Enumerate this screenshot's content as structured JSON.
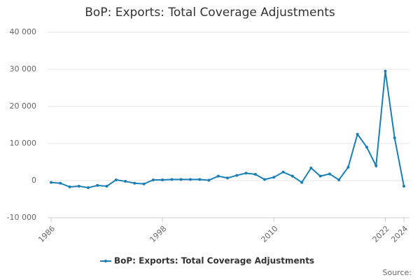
{
  "chart_data": {
    "type": "line",
    "title": "BoP: Exports: Total Coverage Adjustments",
    "source": "Source:",
    "x": [
      1986,
      1987,
      1988,
      1989,
      1990,
      1991,
      1992,
      1993,
      1994,
      1995,
      1996,
      1997,
      1998,
      1999,
      2000,
      2001,
      2002,
      2003,
      2004,
      2005,
      2006,
      2007,
      2008,
      2009,
      2010,
      2011,
      2012,
      2013,
      2014,
      2015,
      2016,
      2017,
      2018,
      2019,
      2020,
      2021,
      2022,
      2023,
      2024
    ],
    "series": [
      {
        "name": "BoP: Exports: Total Coverage Adjustments",
        "color": "#1a7fb5",
        "values": [
          -500,
          -700,
          -1700,
          -1500,
          -1900,
          -1300,
          -1500,
          200,
          -200,
          -700,
          -900,
          200,
          200,
          300,
          300,
          300,
          300,
          100,
          1200,
          700,
          1400,
          2000,
          1700,
          300,
          900,
          2300,
          1200,
          -500,
          3400,
          1200,
          1800,
          200,
          3600,
          12500,
          9000,
          4000,
          29500,
          11500,
          -1500
        ]
      }
    ],
    "xlim": [
      1986,
      2024
    ],
    "xticks": [
      1986,
      1998,
      2010,
      2022,
      2024
    ],
    "ylim": [
      -10000,
      40000
    ],
    "yticks": [
      {
        "value": -10000,
        "label": "-10 000"
      },
      0,
      {
        "value": 10000,
        "label": "10 000"
      },
      {
        "value": 20000,
        "label": "20 000"
      },
      {
        "value": 30000,
        "label": "30 000"
      },
      {
        "value": 40000,
        "label": "40 000"
      }
    ],
    "grid": true,
    "legend": "bottom"
  }
}
